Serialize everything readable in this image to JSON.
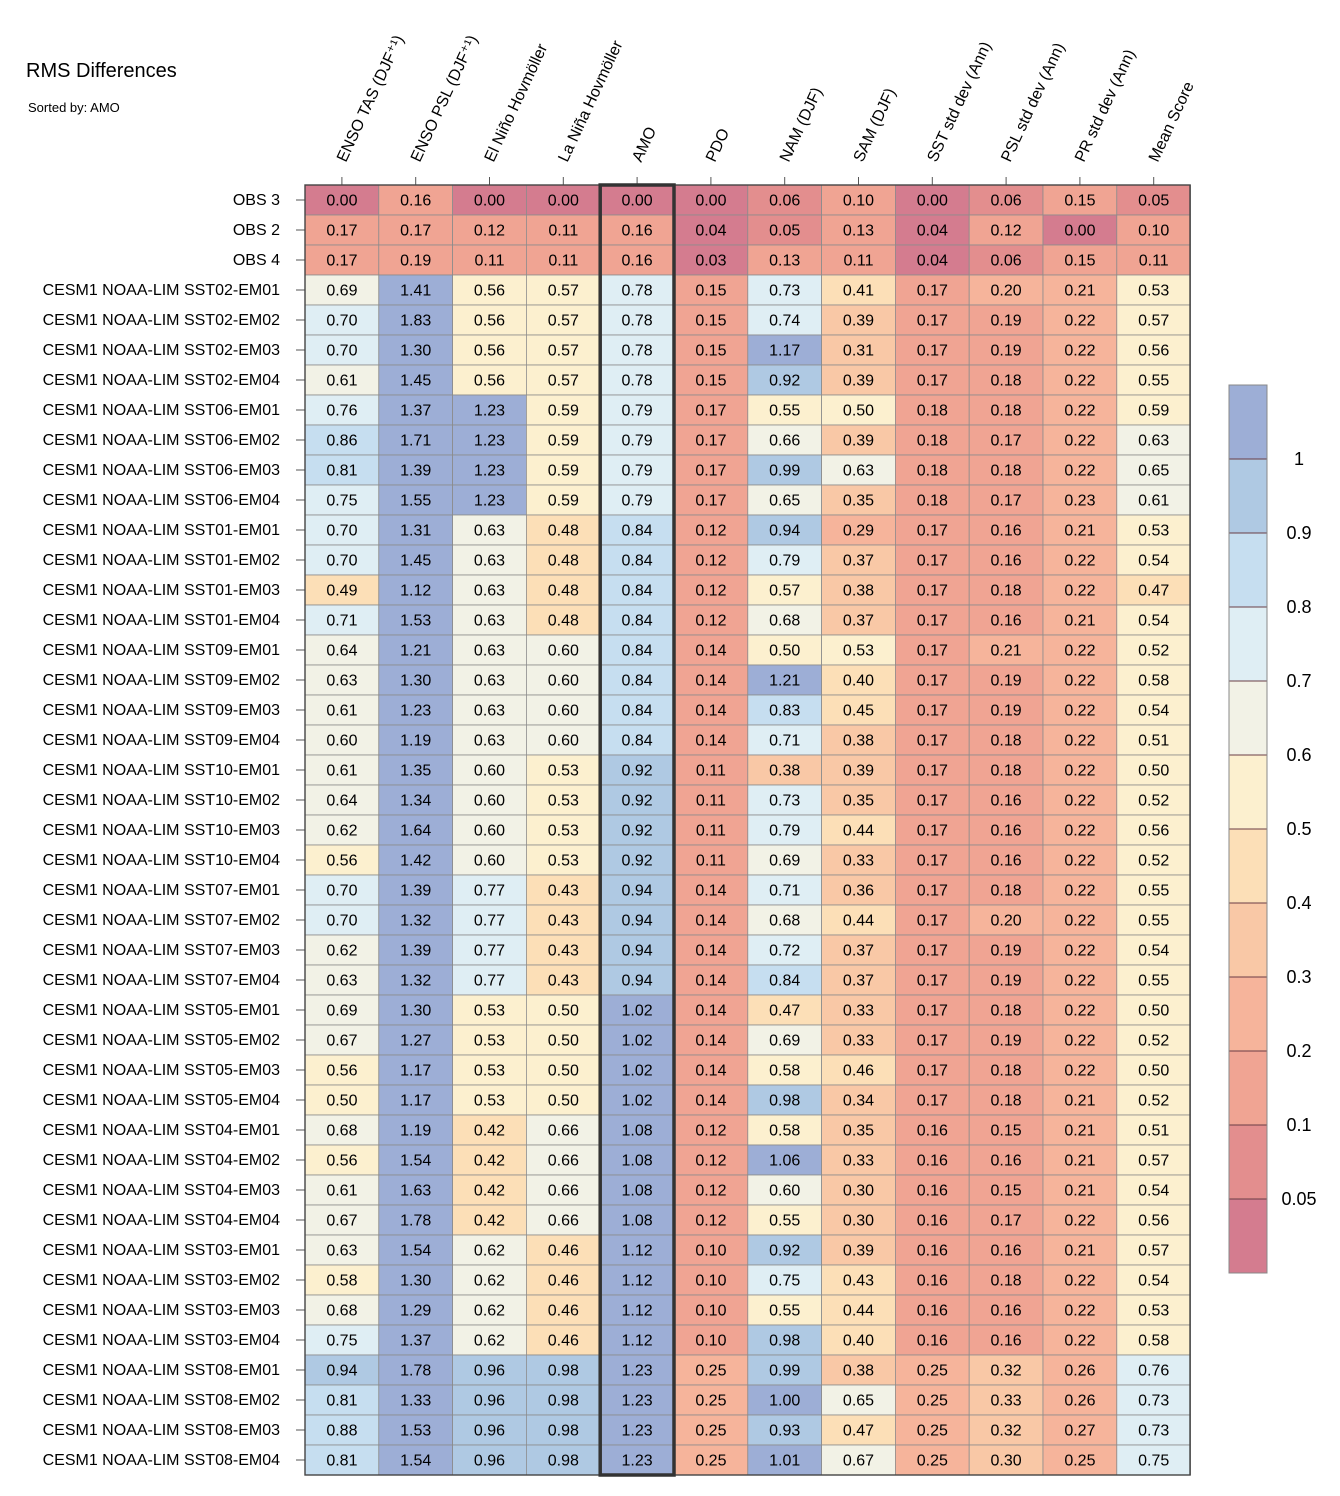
{
  "title": "RMS Differences",
  "subtitle": "Sorted by: AMO",
  "chart_data": {
    "type": "heatmap",
    "title": "RMS Differences",
    "subtitle": "Sorted by: AMO",
    "highlighted_column": "AMO",
    "columns": [
      "ENSO TAS (DJF⁺¹)",
      "ENSO PSL (DJF⁺¹)",
      "El Niño Hovmöller",
      "La Niña Hovmöller",
      "AMO",
      "PDO",
      "NAM (DJF)",
      "SAM (DJF)",
      "SST std dev (Ann)",
      "PSL std dev (Ann)",
      "PR std dev (Ann)",
      "Mean Score"
    ],
    "rows": [
      {
        "label": "OBS 3",
        "values": [
          "0.00",
          "0.16",
          "0.00",
          "0.00",
          "0.00",
          "0.00",
          "0.06",
          "0.10",
          "0.00",
          "0.06",
          "0.15",
          "0.05"
        ]
      },
      {
        "label": "OBS 2",
        "values": [
          "0.17",
          "0.17",
          "0.12",
          "0.11",
          "0.16",
          "0.04",
          "0.05",
          "0.13",
          "0.04",
          "0.12",
          "0.00",
          "0.10"
        ]
      },
      {
        "label": "OBS 4",
        "values": [
          "0.17",
          "0.19",
          "0.11",
          "0.11",
          "0.16",
          "0.03",
          "0.13",
          "0.11",
          "0.04",
          "0.06",
          "0.15",
          "0.11"
        ]
      },
      {
        "label": "CESM1 NOAA-LIM SST02-EM01",
        "values": [
          "0.69",
          "1.41",
          "0.56",
          "0.57",
          "0.78",
          "0.15",
          "0.73",
          "0.41",
          "0.17",
          "0.20",
          "0.21",
          "0.53"
        ]
      },
      {
        "label": "CESM1 NOAA-LIM SST02-EM02",
        "values": [
          "0.70",
          "1.83",
          "0.56",
          "0.57",
          "0.78",
          "0.15",
          "0.74",
          "0.39",
          "0.17",
          "0.19",
          "0.22",
          "0.57"
        ]
      },
      {
        "label": "CESM1 NOAA-LIM SST02-EM03",
        "values": [
          "0.70",
          "1.30",
          "0.56",
          "0.57",
          "0.78",
          "0.15",
          "1.17",
          "0.31",
          "0.17",
          "0.19",
          "0.22",
          "0.56"
        ]
      },
      {
        "label": "CESM1 NOAA-LIM SST02-EM04",
        "values": [
          "0.61",
          "1.45",
          "0.56",
          "0.57",
          "0.78",
          "0.15",
          "0.92",
          "0.39",
          "0.17",
          "0.18",
          "0.22",
          "0.55"
        ]
      },
      {
        "label": "CESM1 NOAA-LIM SST06-EM01",
        "values": [
          "0.76",
          "1.37",
          "1.23",
          "0.59",
          "0.79",
          "0.17",
          "0.55",
          "0.50",
          "0.18",
          "0.18",
          "0.22",
          "0.59"
        ]
      },
      {
        "label": "CESM1 NOAA-LIM SST06-EM02",
        "values": [
          "0.86",
          "1.71",
          "1.23",
          "0.59",
          "0.79",
          "0.17",
          "0.66",
          "0.39",
          "0.18",
          "0.17",
          "0.22",
          "0.63"
        ]
      },
      {
        "label": "CESM1 NOAA-LIM SST06-EM03",
        "values": [
          "0.81",
          "1.39",
          "1.23",
          "0.59",
          "0.79",
          "0.17",
          "0.99",
          "0.63",
          "0.18",
          "0.18",
          "0.22",
          "0.65"
        ]
      },
      {
        "label": "CESM1 NOAA-LIM SST06-EM04",
        "values": [
          "0.75",
          "1.55",
          "1.23",
          "0.59",
          "0.79",
          "0.17",
          "0.65",
          "0.35",
          "0.18",
          "0.17",
          "0.23",
          "0.61"
        ]
      },
      {
        "label": "CESM1 NOAA-LIM SST01-EM01",
        "values": [
          "0.70",
          "1.31",
          "0.63",
          "0.48",
          "0.84",
          "0.12",
          "0.94",
          "0.29",
          "0.17",
          "0.16",
          "0.21",
          "0.53"
        ]
      },
      {
        "label": "CESM1 NOAA-LIM SST01-EM02",
        "values": [
          "0.70",
          "1.45",
          "0.63",
          "0.48",
          "0.84",
          "0.12",
          "0.79",
          "0.37",
          "0.17",
          "0.16",
          "0.22",
          "0.54"
        ]
      },
      {
        "label": "CESM1 NOAA-LIM SST01-EM03",
        "values": [
          "0.49",
          "1.12",
          "0.63",
          "0.48",
          "0.84",
          "0.12",
          "0.57",
          "0.38",
          "0.17",
          "0.18",
          "0.22",
          "0.47"
        ]
      },
      {
        "label": "CESM1 NOAA-LIM SST01-EM04",
        "values": [
          "0.71",
          "1.53",
          "0.63",
          "0.48",
          "0.84",
          "0.12",
          "0.68",
          "0.37",
          "0.17",
          "0.16",
          "0.21",
          "0.54"
        ]
      },
      {
        "label": "CESM1 NOAA-LIM SST09-EM01",
        "values": [
          "0.64",
          "1.21",
          "0.63",
          "0.60",
          "0.84",
          "0.14",
          "0.50",
          "0.53",
          "0.17",
          "0.21",
          "0.22",
          "0.52"
        ]
      },
      {
        "label": "CESM1 NOAA-LIM SST09-EM02",
        "values": [
          "0.63",
          "1.30",
          "0.63",
          "0.60",
          "0.84",
          "0.14",
          "1.21",
          "0.40",
          "0.17",
          "0.19",
          "0.22",
          "0.58"
        ]
      },
      {
        "label": "CESM1 NOAA-LIM SST09-EM03",
        "values": [
          "0.61",
          "1.23",
          "0.63",
          "0.60",
          "0.84",
          "0.14",
          "0.83",
          "0.45",
          "0.17",
          "0.19",
          "0.22",
          "0.54"
        ]
      },
      {
        "label": "CESM1 NOAA-LIM SST09-EM04",
        "values": [
          "0.60",
          "1.19",
          "0.63",
          "0.60",
          "0.84",
          "0.14",
          "0.71",
          "0.38",
          "0.17",
          "0.18",
          "0.22",
          "0.51"
        ]
      },
      {
        "label": "CESM1 NOAA-LIM SST10-EM01",
        "values": [
          "0.61",
          "1.35",
          "0.60",
          "0.53",
          "0.92",
          "0.11",
          "0.38",
          "0.39",
          "0.17",
          "0.18",
          "0.22",
          "0.50"
        ]
      },
      {
        "label": "CESM1 NOAA-LIM SST10-EM02",
        "values": [
          "0.64",
          "1.34",
          "0.60",
          "0.53",
          "0.92",
          "0.11",
          "0.73",
          "0.35",
          "0.17",
          "0.16",
          "0.22",
          "0.52"
        ]
      },
      {
        "label": "CESM1 NOAA-LIM SST10-EM03",
        "values": [
          "0.62",
          "1.64",
          "0.60",
          "0.53",
          "0.92",
          "0.11",
          "0.79",
          "0.44",
          "0.17",
          "0.16",
          "0.22",
          "0.56"
        ]
      },
      {
        "label": "CESM1 NOAA-LIM SST10-EM04",
        "values": [
          "0.56",
          "1.42",
          "0.60",
          "0.53",
          "0.92",
          "0.11",
          "0.69",
          "0.33",
          "0.17",
          "0.16",
          "0.22",
          "0.52"
        ]
      },
      {
        "label": "CESM1 NOAA-LIM SST07-EM01",
        "values": [
          "0.70",
          "1.39",
          "0.77",
          "0.43",
          "0.94",
          "0.14",
          "0.71",
          "0.36",
          "0.17",
          "0.18",
          "0.22",
          "0.55"
        ]
      },
      {
        "label": "CESM1 NOAA-LIM SST07-EM02",
        "values": [
          "0.70",
          "1.32",
          "0.77",
          "0.43",
          "0.94",
          "0.14",
          "0.68",
          "0.44",
          "0.17",
          "0.20",
          "0.22",
          "0.55"
        ]
      },
      {
        "label": "CESM1 NOAA-LIM SST07-EM03",
        "values": [
          "0.62",
          "1.39",
          "0.77",
          "0.43",
          "0.94",
          "0.14",
          "0.72",
          "0.37",
          "0.17",
          "0.19",
          "0.22",
          "0.54"
        ]
      },
      {
        "label": "CESM1 NOAA-LIM SST07-EM04",
        "values": [
          "0.63",
          "1.32",
          "0.77",
          "0.43",
          "0.94",
          "0.14",
          "0.84",
          "0.37",
          "0.17",
          "0.19",
          "0.22",
          "0.55"
        ]
      },
      {
        "label": "CESM1 NOAA-LIM SST05-EM01",
        "values": [
          "0.69",
          "1.30",
          "0.53",
          "0.50",
          "1.02",
          "0.14",
          "0.47",
          "0.33",
          "0.17",
          "0.18",
          "0.22",
          "0.50"
        ]
      },
      {
        "label": "CESM1 NOAA-LIM SST05-EM02",
        "values": [
          "0.67",
          "1.27",
          "0.53",
          "0.50",
          "1.02",
          "0.14",
          "0.69",
          "0.33",
          "0.17",
          "0.19",
          "0.22",
          "0.52"
        ]
      },
      {
        "label": "CESM1 NOAA-LIM SST05-EM03",
        "values": [
          "0.56",
          "1.17",
          "0.53",
          "0.50",
          "1.02",
          "0.14",
          "0.58",
          "0.46",
          "0.17",
          "0.18",
          "0.22",
          "0.50"
        ]
      },
      {
        "label": "CESM1 NOAA-LIM SST05-EM04",
        "values": [
          "0.50",
          "1.17",
          "0.53",
          "0.50",
          "1.02",
          "0.14",
          "0.98",
          "0.34",
          "0.17",
          "0.18",
          "0.21",
          "0.52"
        ]
      },
      {
        "label": "CESM1 NOAA-LIM SST04-EM01",
        "values": [
          "0.68",
          "1.19",
          "0.42",
          "0.66",
          "1.08",
          "0.12",
          "0.58",
          "0.35",
          "0.16",
          "0.15",
          "0.21",
          "0.51"
        ]
      },
      {
        "label": "CESM1 NOAA-LIM SST04-EM02",
        "values": [
          "0.56",
          "1.54",
          "0.42",
          "0.66",
          "1.08",
          "0.12",
          "1.06",
          "0.33",
          "0.16",
          "0.16",
          "0.21",
          "0.57"
        ]
      },
      {
        "label": "CESM1 NOAA-LIM SST04-EM03",
        "values": [
          "0.61",
          "1.63",
          "0.42",
          "0.66",
          "1.08",
          "0.12",
          "0.60",
          "0.30",
          "0.16",
          "0.15",
          "0.21",
          "0.54"
        ]
      },
      {
        "label": "CESM1 NOAA-LIM SST04-EM04",
        "values": [
          "0.67",
          "1.78",
          "0.42",
          "0.66",
          "1.08",
          "0.12",
          "0.55",
          "0.30",
          "0.16",
          "0.17",
          "0.22",
          "0.56"
        ]
      },
      {
        "label": "CESM1 NOAA-LIM SST03-EM01",
        "values": [
          "0.63",
          "1.54",
          "0.62",
          "0.46",
          "1.12",
          "0.10",
          "0.92",
          "0.39",
          "0.16",
          "0.16",
          "0.21",
          "0.57"
        ]
      },
      {
        "label": "CESM1 NOAA-LIM SST03-EM02",
        "values": [
          "0.58",
          "1.30",
          "0.62",
          "0.46",
          "1.12",
          "0.10",
          "0.75",
          "0.43",
          "0.16",
          "0.18",
          "0.22",
          "0.54"
        ]
      },
      {
        "label": "CESM1 NOAA-LIM SST03-EM03",
        "values": [
          "0.68",
          "1.29",
          "0.62",
          "0.46",
          "1.12",
          "0.10",
          "0.55",
          "0.44",
          "0.16",
          "0.16",
          "0.22",
          "0.53"
        ]
      },
      {
        "label": "CESM1 NOAA-LIM SST03-EM04",
        "values": [
          "0.75",
          "1.37",
          "0.62",
          "0.46",
          "1.12",
          "0.10",
          "0.98",
          "0.40",
          "0.16",
          "0.16",
          "0.22",
          "0.58"
        ]
      },
      {
        "label": "CESM1 NOAA-LIM SST08-EM01",
        "values": [
          "0.94",
          "1.78",
          "0.96",
          "0.98",
          "1.23",
          "0.25",
          "0.99",
          "0.38",
          "0.25",
          "0.32",
          "0.26",
          "0.76"
        ]
      },
      {
        "label": "CESM1 NOAA-LIM SST08-EM02",
        "values": [
          "0.81",
          "1.33",
          "0.96",
          "0.98",
          "1.23",
          "0.25",
          "1.00",
          "0.65",
          "0.25",
          "0.33",
          "0.26",
          "0.73"
        ]
      },
      {
        "label": "CESM1 NOAA-LIM SST08-EM03",
        "values": [
          "0.88",
          "1.53",
          "0.96",
          "0.98",
          "1.23",
          "0.25",
          "0.93",
          "0.47",
          "0.25",
          "0.32",
          "0.27",
          "0.73"
        ]
      },
      {
        "label": "CESM1 NOAA-LIM SST08-EM04",
        "values": [
          "0.81",
          "1.54",
          "0.96",
          "0.98",
          "1.23",
          "0.25",
          "1.01",
          "0.67",
          "0.25",
          "0.30",
          "0.25",
          "0.75"
        ]
      }
    ],
    "colorbar": {
      "bins": [
        0,
        0.05,
        0.1,
        0.2,
        0.3,
        0.4,
        0.5,
        0.6,
        0.7,
        0.8,
        0.9,
        1
      ],
      "tick_labels": [
        "0.05",
        "0.1",
        "0.2",
        "0.3",
        "0.4",
        "0.5",
        "0.6",
        "0.7",
        "0.8",
        "0.9",
        "1"
      ],
      "colors": [
        "#d47c8f",
        "#e38e8e",
        "#f0a493",
        "#f6b49b",
        "#f9c8a6",
        "#fcdfb7",
        "#fcf0cf",
        "#f2f2e6",
        "#dfeef4",
        "#c6def0",
        "#afc9e3",
        "#9daed6"
      ]
    }
  }
}
